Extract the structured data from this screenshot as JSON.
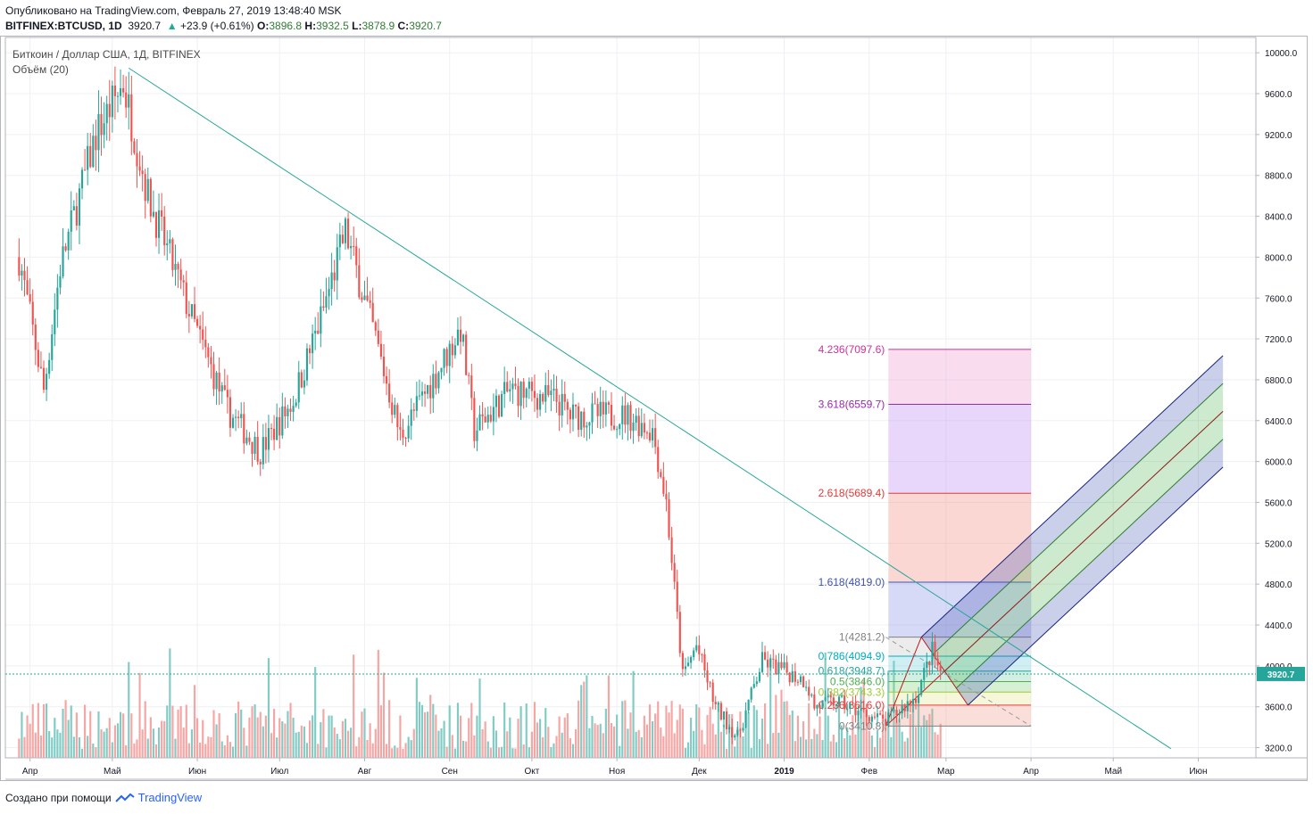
{
  "header": {
    "published": "Опубликовано на TradingView.com, Февраль 27, 2019 13:48:40 MSK",
    "symbol": "BITFINEX:BTCUSD, 1D",
    "last": "3920.7",
    "change": "+23.9 (+0.61%)",
    "o_label": "O:",
    "o_value": "3896.8",
    "h_label": "H:",
    "h_value": "3932.5",
    "l_label": "L:",
    "l_value": "3878.9",
    "c_label": "C:",
    "c_value": "3920.7"
  },
  "legend": {
    "title": "Биткоин / Доллар США, 1Д, BITFINEX",
    "volume": "Объём (20)"
  },
  "footer": {
    "created_with": "Создано при помощи",
    "brand": "TradingView"
  },
  "colors": {
    "up": "#26a69a",
    "down": "#ef5350",
    "vol_up": "#80cbc4",
    "vol_down": "#f5a5a3",
    "trendline": "#26a69a",
    "price_tag": "#26a69a",
    "grid": "#eef0f3"
  },
  "chart_data": {
    "type": "candlestick",
    "y_axis": {
      "min": 3100,
      "max": 10150,
      "ticks": [
        "3200.0",
        "3600.0",
        "4000.0",
        "4400.0",
        "4800.0",
        "5200.0",
        "5600.0",
        "6000.0",
        "6400.0",
        "6800.0",
        "7200.0",
        "7600.0",
        "8000.0",
        "8400.0",
        "8800.0",
        "9200.0",
        "9600.0",
        "10000.0"
      ]
    },
    "x_axis": {
      "ticks": [
        "Апр",
        "Май",
        "Июн",
        "Июл",
        "Авг",
        "Сен",
        "Окт",
        "Ноя",
        "Дек",
        "2019",
        "Фев",
        "Мар",
        "Апр",
        "Май",
        "Июн"
      ],
      "bold_ticks": [
        "2019"
      ]
    },
    "current_price": "3920.7",
    "price_path_anchors": [
      {
        "date": "2018-03-28",
        "price": 8000
      },
      {
        "date": "2018-04-06",
        "price": 6700
      },
      {
        "date": "2018-04-12",
        "price": 7900
      },
      {
        "date": "2018-04-25",
        "price": 9200
      },
      {
        "date": "2018-05-05",
        "price": 9700
      },
      {
        "date": "2018-05-14",
        "price": 8600
      },
      {
        "date": "2018-05-30",
        "price": 7400
      },
      {
        "date": "2018-06-12",
        "price": 6500
      },
      {
        "date": "2018-06-24",
        "price": 6100
      },
      {
        "date": "2018-07-06",
        "price": 6600
      },
      {
        "date": "2018-07-16",
        "price": 7400
      },
      {
        "date": "2018-07-25",
        "price": 8250
      },
      {
        "date": "2018-08-05",
        "price": 7200
      },
      {
        "date": "2018-08-14",
        "price": 6250
      },
      {
        "date": "2018-08-28",
        "price": 6900
      },
      {
        "date": "2018-09-05",
        "price": 7300
      },
      {
        "date": "2018-09-10",
        "price": 6300
      },
      {
        "date": "2018-09-23",
        "price": 6700
      },
      {
        "date": "2018-10-10",
        "price": 6600
      },
      {
        "date": "2018-10-15",
        "price": 6450
      },
      {
        "date": "2018-11-05",
        "price": 6450
      },
      {
        "date": "2018-11-14",
        "price": 6300
      },
      {
        "date": "2018-11-19",
        "price": 5600
      },
      {
        "date": "2018-11-25",
        "price": 3900
      },
      {
        "date": "2018-11-30",
        "price": 4200
      },
      {
        "date": "2018-12-07",
        "price": 3600
      },
      {
        "date": "2018-12-15",
        "price": 3300
      },
      {
        "date": "2018-12-24",
        "price": 4050
      },
      {
        "date": "2019-01-05",
        "price": 3900
      },
      {
        "date": "2019-01-09",
        "price": 3850
      },
      {
        "date": "2019-01-12",
        "price": 3600
      },
      {
        "date": "2019-01-20",
        "price": 3650
      },
      {
        "date": "2019-02-07",
        "price": 3450
      },
      {
        "date": "2019-02-18",
        "price": 3700
      },
      {
        "date": "2019-02-24",
        "price": 4150
      },
      {
        "date": "2019-02-27",
        "price": 3920
      }
    ],
    "trendline": {
      "from": {
        "date": "2018-05-07",
        "price": 9850
      },
      "to": {
        "date": "2019-05-22",
        "price": 3190
      }
    },
    "fib_levels": [
      {
        "label": "4.236(7097.6)",
        "price": 7097.6,
        "color": "#cc3399",
        "fill": "rgba(230,120,190,0.25)"
      },
      {
        "label": "3.618(6559.7)",
        "price": 6559.7,
        "color": "#9c27b0",
        "fill": "rgba(190,140,240,0.35)"
      },
      {
        "label": "2.618(5689.4)",
        "price": 5689.4,
        "color": "#e53935",
        "fill": "rgba(240,140,130,0.35)"
      },
      {
        "label": "1.618(4819.0)",
        "price": 4819.0,
        "color": "#3f51b5",
        "fill": "rgba(140,150,230,0.35)"
      },
      {
        "label": "1(4281.2)",
        "price": 4281.2,
        "color": "#808080",
        "fill": "rgba(200,200,200,0.35)"
      },
      {
        "label": "0.786(4094.9)",
        "price": 4094.9,
        "color": "#00acc1",
        "fill": "rgba(120,210,220,0.35)"
      },
      {
        "label": "0.618(3948.7)",
        "price": 3948.7,
        "color": "#26a69a",
        "fill": "rgba(130,210,170,0.35)"
      },
      {
        "label": "0.5(3846.0)",
        "price": 3846.0,
        "color": "#4caf50",
        "fill": "rgba(140,210,130,0.35)"
      },
      {
        "label": "0.382(3743.3)",
        "price": 3743.3,
        "color": "#9acd32",
        "fill": "rgba(230,230,150,0.35)"
      },
      {
        "label": "0.236(3616.0)",
        "price": 3616.0,
        "color": "#e53935",
        "fill": "rgba(240,160,150,0.35)"
      },
      {
        "label": "0(3410.8)",
        "price": 3410.8,
        "color": "#808080",
        "fill": "none"
      }
    ],
    "fib_range": {
      "from_date": "2019-02-08",
      "to_date": "2019-04-01"
    },
    "pitchfork": {
      "p1": {
        "date": "2019-02-07",
        "price": 3410
      },
      "p2": {
        "date": "2019-02-20",
        "price": 4281
      },
      "p3": {
        "date": "2019-03-09",
        "price": 3616
      },
      "end_date": "2019-06-10"
    }
  }
}
